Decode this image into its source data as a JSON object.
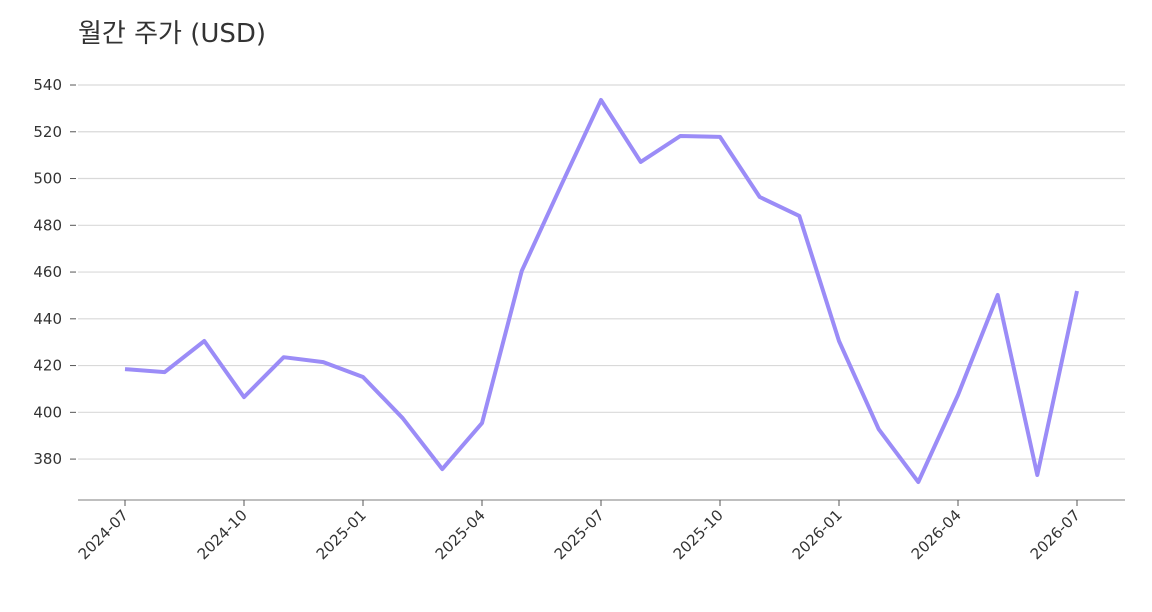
{
  "chart_data": {
    "type": "line",
    "title": "월간 주가 (USD)",
    "x": [
      "2024-07",
      "2024-08",
      "2024-09",
      "2024-10",
      "2024-11",
      "2024-12",
      "2025-01",
      "2025-02",
      "2025-03",
      "2025-04",
      "2025-05",
      "2025-06",
      "2025-07",
      "2025-08",
      "2025-09",
      "2025-10",
      "2025-11",
      "2025-12",
      "2026-01",
      "2026-02",
      "2026-03",
      "2026-04",
      "2026-05",
      "2026-06",
      "2026-07"
    ],
    "series": [
      {
        "name": "주가",
        "color": "#9b8cf7",
        "values": [
          418.5,
          417.2,
          430.5,
          406.5,
          423.6,
          421.5,
          415.1,
          397.5,
          375.7,
          395.4,
          460.4,
          497.2,
          533.6,
          507.1,
          518.2,
          517.8,
          492.1,
          484.0,
          430.5,
          392.8,
          370.2,
          407.4,
          450.2,
          373.2,
          451.9
        ]
      }
    ],
    "xticks": [
      "2024-07",
      "2024-10",
      "2025-01",
      "2025-04",
      "2025-07",
      "2025-10",
      "2026-01",
      "2026-04",
      "2026-07"
    ],
    "ylim": [
      362.5,
      543
    ],
    "yticks": [
      380,
      400,
      420,
      440,
      460,
      480,
      500,
      520,
      540
    ],
    "grid": true
  }
}
